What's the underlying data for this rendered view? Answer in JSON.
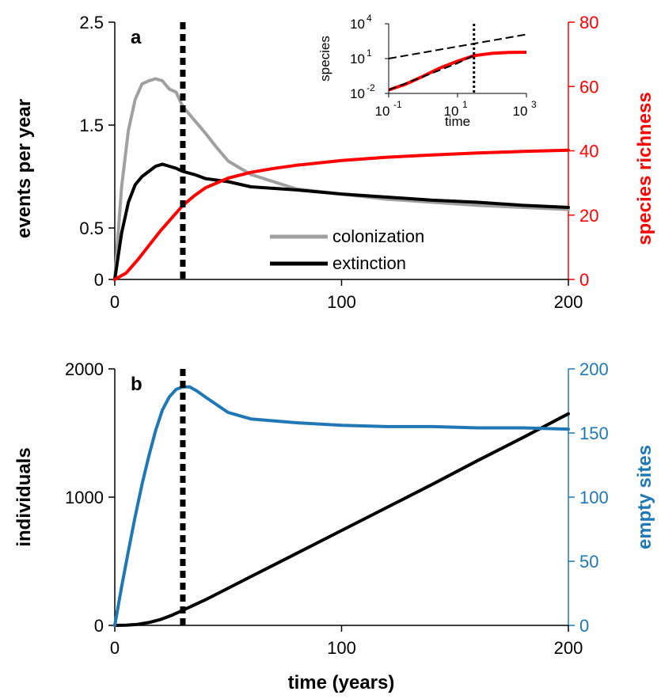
{
  "colors": {
    "colonization": "#a0a0a0",
    "extinction": "#000000",
    "richness": "#ff0000",
    "individuals": "#000000",
    "empty_sites": "#1f78b4"
  },
  "chart_data": [
    {
      "panel": "a",
      "type": "line",
      "xlim": [
        0,
        200
      ],
      "x_ticks": [
        "0",
        "100",
        "200"
      ],
      "ylabel": "events per year",
      "ylim": [
        0,
        2.5
      ],
      "y_ticks": [
        "0",
        "0.5",
        "1.5",
        "2.5"
      ],
      "y2label": "species richness",
      "y2lim": [
        0,
        80
      ],
      "y2_ticks": [
        "0",
        "20",
        "40",
        "60",
        "80"
      ],
      "vline_x": 30,
      "legend": {
        "placement": "bottom-right",
        "entries": [
          "colonization",
          "extinction"
        ]
      },
      "series": [
        {
          "name": "colonization",
          "axis": "left",
          "x": [
            0,
            3,
            6,
            9,
            12,
            15,
            18,
            21,
            24,
            27,
            30,
            35,
            40,
            45,
            50,
            60,
            70,
            80,
            100,
            120,
            140,
            160,
            180,
            200
          ],
          "y": [
            0,
            0.9,
            1.45,
            1.75,
            1.9,
            1.93,
            1.95,
            1.93,
            1.85,
            1.82,
            1.68,
            1.55,
            1.42,
            1.28,
            1.15,
            1.02,
            0.95,
            0.88,
            0.83,
            0.78,
            0.75,
            0.72,
            0.7,
            0.68
          ]
        },
        {
          "name": "extinction",
          "axis": "left",
          "x": [
            0,
            3,
            6,
            9,
            12,
            15,
            18,
            21,
            24,
            27,
            30,
            35,
            40,
            50,
            60,
            80,
            100,
            120,
            140,
            160,
            180,
            200
          ],
          "y": [
            0,
            0.45,
            0.75,
            0.92,
            1.0,
            1.05,
            1.1,
            1.12,
            1.1,
            1.08,
            1.05,
            1.02,
            0.98,
            0.95,
            0.9,
            0.87,
            0.83,
            0.8,
            0.77,
            0.75,
            0.72,
            0.7
          ]
        },
        {
          "name": "",
          "axis": "right",
          "x": [
            0,
            5,
            10,
            15,
            20,
            25,
            30,
            35,
            40,
            50,
            60,
            70,
            80,
            100,
            120,
            140,
            160,
            180,
            200
          ],
          "y": [
            0,
            2,
            6,
            10.5,
            15,
            19,
            23,
            26,
            28.5,
            31.5,
            33.3,
            34.5,
            35.5,
            37,
            38,
            38.7,
            39.3,
            39.8,
            40.2
          ]
        }
      ],
      "inset": {
        "type": "line",
        "log_x": true,
        "log_y": true,
        "xlabel": "time",
        "ylabel": "species",
        "xlim": [
          0.1,
          1000
        ],
        "ylim": [
          0.01,
          10000
        ],
        "x_ticks": [
          {
            "base": "10",
            "exp": "-1"
          },
          {
            "base": "10",
            "exp": "1"
          },
          {
            "base": "10",
            "exp": "3"
          }
        ],
        "y_ticks": [
          {
            "base": "10",
            "exp": "-2"
          },
          {
            "base": "10",
            "exp": "1"
          },
          {
            "base": "10",
            "exp": "4"
          }
        ],
        "vline_x": 30,
        "series": [
          {
            "name": "",
            "style": "red",
            "x": [
              0.1,
              0.3,
              1,
              3,
              10,
              30,
              100,
              300,
              1000
            ],
            "y": [
              0.02,
              0.06,
              0.3,
              1.5,
              6,
              18,
              28,
              34,
              35
            ]
          },
          {
            "name": "",
            "style": "dashed-black",
            "x": [
              0.1,
              1,
              10,
              30
            ],
            "y": [
              0.02,
              0.28,
              4,
              19
            ]
          },
          {
            "name": "",
            "style": "dashed-black",
            "x": [
              0.1,
              1000
            ],
            "y": [
              10,
              1200
            ]
          }
        ]
      }
    },
    {
      "panel": "b",
      "type": "line",
      "xlim": [
        0,
        200
      ],
      "x_ticks": [
        "0",
        "100",
        "200"
      ],
      "xlabel": "time (years)",
      "ylabel": "individuals",
      "ylim": [
        0,
        2000
      ],
      "y_ticks": [
        "0",
        "1000",
        "2000"
      ],
      "y2label": "empty sites",
      "y2lim": [
        0,
        200
      ],
      "y2_ticks": [
        "0",
        "50",
        "100",
        "150",
        "200"
      ],
      "vline_x": 30,
      "series": [
        {
          "name": "",
          "axis": "left",
          "x": [
            0,
            5,
            10,
            15,
            20,
            25,
            30,
            40,
            50,
            60,
            80,
            100,
            120,
            140,
            160,
            180,
            200
          ],
          "y": [
            0,
            2,
            8,
            22,
            45,
            78,
            118,
            200,
            290,
            380,
            560,
            740,
            920,
            1100,
            1285,
            1465,
            1650
          ]
        },
        {
          "name": "",
          "axis": "right",
          "x": [
            0,
            3,
            6,
            9,
            12,
            15,
            18,
            21,
            24,
            27,
            30,
            33,
            36,
            40,
            45,
            50,
            60,
            80,
            100,
            120,
            140,
            160,
            180,
            200
          ],
          "y": [
            0,
            30,
            58,
            85,
            110,
            132,
            152,
            168,
            178,
            184,
            186,
            186,
            183,
            178,
            172,
            166,
            161,
            158,
            156,
            155,
            155,
            154,
            154,
            153
          ]
        }
      ]
    }
  ]
}
